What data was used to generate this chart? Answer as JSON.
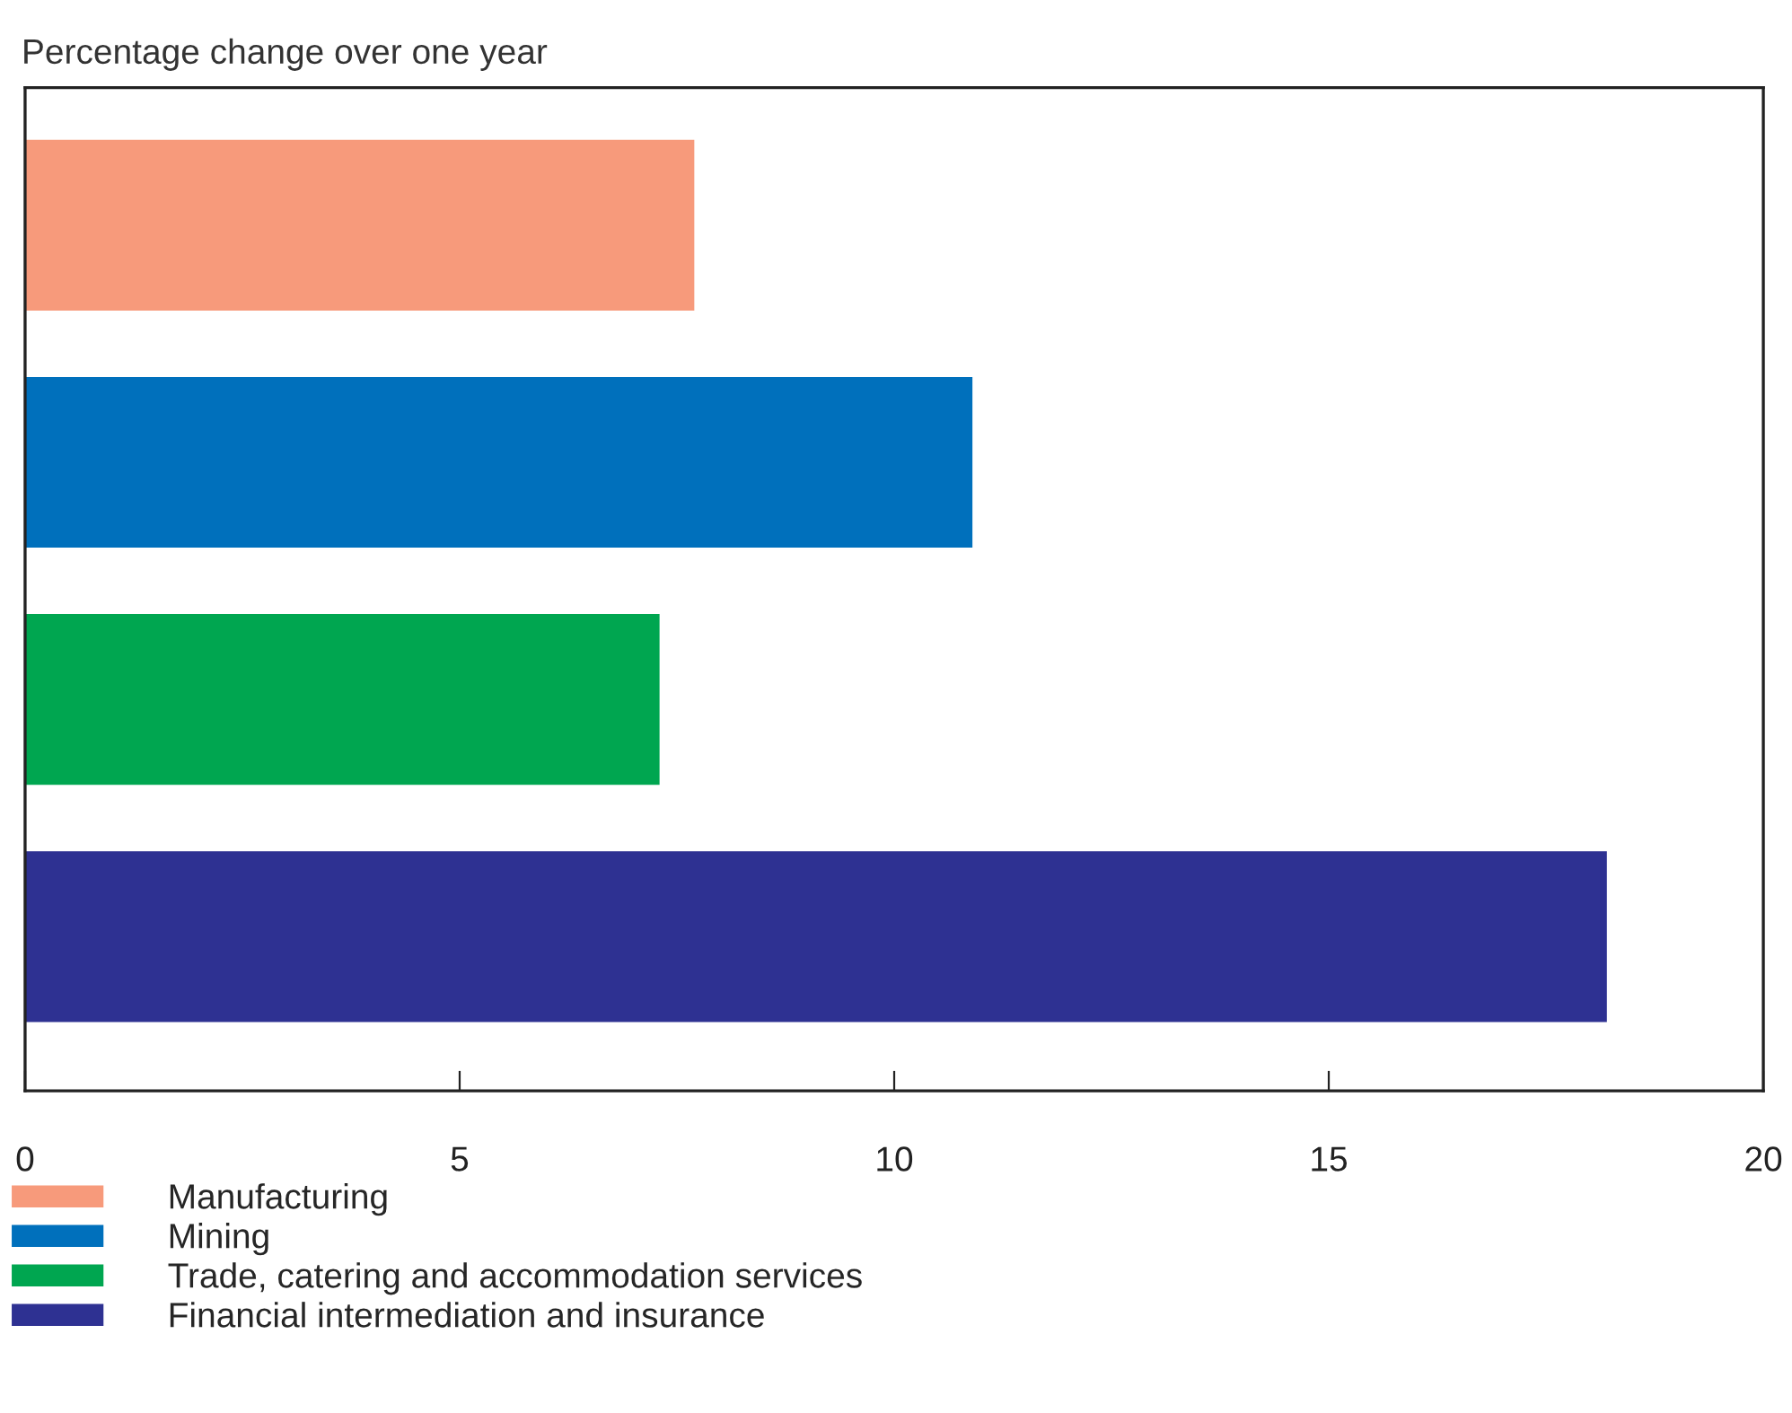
{
  "chart_data": {
    "type": "bar",
    "orientation": "horizontal",
    "title": "Percentage change over one year",
    "categories": [
      null,
      null,
      null,
      null
    ],
    "series": [
      {
        "name": "Manufacturing",
        "color": "#f79a7b",
        "values": [
          7.7,
          null,
          null,
          null
        ]
      },
      {
        "name": "Mining",
        "color": "#0070bc",
        "values": [
          null,
          10.9,
          null,
          null
        ]
      },
      {
        "name": "Trade, catering and accommodation services",
        "color": "#00a650",
        "values": [
          null,
          null,
          7.3,
          null
        ]
      },
      {
        "name": "Financial intermediation and insurance",
        "color": "#2e3192",
        "values": [
          null,
          null,
          null,
          18.2
        ]
      }
    ],
    "xlim": [
      0,
      20
    ],
    "xticks": [
      0,
      5,
      10,
      15,
      20
    ],
    "tick_labels": "x",
    "grid": false,
    "legend": "bottom"
  }
}
